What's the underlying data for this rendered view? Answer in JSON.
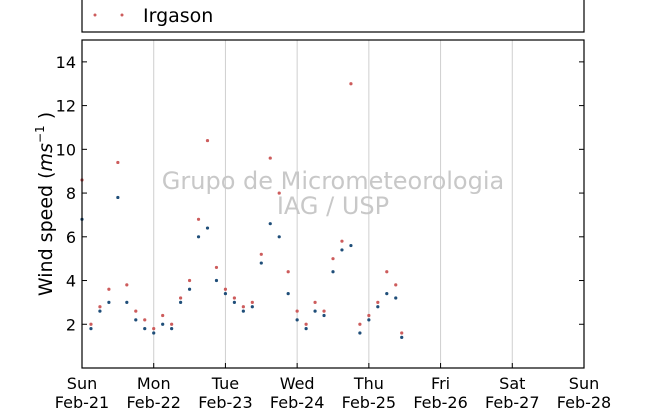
{
  "chart_data": {
    "type": "scatter",
    "title": "",
    "ylabel": "Wind speed ($ms^{-1}$)",
    "ylabel_main": "Wind speed (",
    "ylabel_unit_base": "ms",
    "ylabel_unit_exp": "−1",
    "ylabel_close": " )",
    "ylim": [
      0,
      15
    ],
    "yticks": [
      2,
      4,
      6,
      8,
      10,
      12,
      14
    ],
    "xlim": [
      "2016-02-21",
      "2016-02-28"
    ],
    "xticks": [
      {
        "date": "2016-02-21",
        "day": "Sun",
        "label": "Feb-21"
      },
      {
        "date": "2016-02-22",
        "day": "Mon",
        "label": "Feb-22"
      },
      {
        "date": "2016-02-23",
        "day": "Tue",
        "label": "Feb-23"
      },
      {
        "date": "2016-02-24",
        "day": "Wed",
        "label": "Feb-24"
      },
      {
        "date": "2016-02-25",
        "day": "Thu",
        "label": "Feb-25"
      },
      {
        "date": "2016-02-26",
        "day": "Fri",
        "label": "Feb-26"
      },
      {
        "date": "2016-02-27",
        "day": "Sat",
        "label": "Feb-27"
      },
      {
        "date": "2016-02-28",
        "day": "Sun",
        "label": "Feb-28"
      }
    ],
    "grid": "vertical",
    "legend_position": "top",
    "watermark": [
      "Grupo de Micrometeorologia",
      "IAG / USP"
    ],
    "series": [
      {
        "name": "Irgason",
        "color": "#cd5c5c",
        "shown_in_legend": true,
        "x": [
          "2016-02-21T00:00",
          "2016-02-21T03:00",
          "2016-02-21T06:00",
          "2016-02-21T09:00",
          "2016-02-21T12:00",
          "2016-02-21T15:00",
          "2016-02-21T18:00",
          "2016-02-21T21:00",
          "2016-02-22T00:00",
          "2016-02-22T03:00",
          "2016-02-22T06:00",
          "2016-02-22T09:00",
          "2016-02-22T12:00",
          "2016-02-22T15:00",
          "2016-02-22T18:00",
          "2016-02-22T21:00",
          "2016-02-23T00:00",
          "2016-02-23T03:00",
          "2016-02-23T06:00",
          "2016-02-23T09:00",
          "2016-02-23T12:00",
          "2016-02-23T15:00",
          "2016-02-23T18:00",
          "2016-02-23T21:00",
          "2016-02-24T00:00",
          "2016-02-24T03:00",
          "2016-02-24T06:00",
          "2016-02-24T09:00",
          "2016-02-24T12:00",
          "2016-02-24T15:00",
          "2016-02-24T18:00",
          "2016-02-24T21:00",
          "2016-02-25T00:00",
          "2016-02-25T03:00",
          "2016-02-25T06:00",
          "2016-02-25T09:00",
          "2016-02-25T11:00"
        ],
        "y": [
          8.6,
          2.0,
          2.8,
          3.6,
          9.4,
          3.8,
          2.6,
          2.2,
          1.8,
          2.4,
          2.0,
          3.2,
          4.0,
          6.8,
          10.4,
          4.6,
          3.6,
          3.2,
          2.8,
          3.0,
          5.2,
          9.6,
          8.0,
          4.4,
          2.6,
          2.0,
          3.0,
          2.6,
          5.0,
          5.8,
          13.0,
          2.0,
          2.4,
          3.0,
          4.4,
          3.8,
          1.6
        ]
      },
      {
        "name": "",
        "color": "#1f4e79",
        "shown_in_legend": false,
        "x": [
          "2016-02-21T00:00",
          "2016-02-21T03:00",
          "2016-02-21T06:00",
          "2016-02-21T09:00",
          "2016-02-21T12:00",
          "2016-02-21T15:00",
          "2016-02-21T18:00",
          "2016-02-21T21:00",
          "2016-02-22T00:00",
          "2016-02-22T03:00",
          "2016-02-22T06:00",
          "2016-02-22T09:00",
          "2016-02-22T12:00",
          "2016-02-22T15:00",
          "2016-02-22T18:00",
          "2016-02-22T21:00",
          "2016-02-23T00:00",
          "2016-02-23T03:00",
          "2016-02-23T06:00",
          "2016-02-23T09:00",
          "2016-02-23T12:00",
          "2016-02-23T15:00",
          "2016-02-23T18:00",
          "2016-02-23T21:00",
          "2016-02-24T00:00",
          "2016-02-24T03:00",
          "2016-02-24T06:00",
          "2016-02-24T09:00",
          "2016-02-24T12:00",
          "2016-02-24T15:00",
          "2016-02-24T18:00",
          "2016-02-24T21:00",
          "2016-02-25T00:00",
          "2016-02-25T03:00",
          "2016-02-25T06:00",
          "2016-02-25T09:00",
          "2016-02-25T11:00"
        ],
        "y": [
          6.8,
          1.8,
          2.6,
          3.0,
          7.8,
          3.0,
          2.2,
          1.8,
          1.6,
          2.0,
          1.8,
          3.0,
          3.6,
          6.0,
          6.4,
          4.0,
          3.4,
          3.0,
          2.6,
          2.8,
          4.8,
          6.6,
          6.0,
          3.4,
          2.2,
          1.8,
          2.6,
          2.4,
          4.4,
          5.4,
          5.6,
          1.6,
          2.2,
          2.8,
          3.4,
          3.2,
          1.4
        ]
      }
    ]
  }
}
